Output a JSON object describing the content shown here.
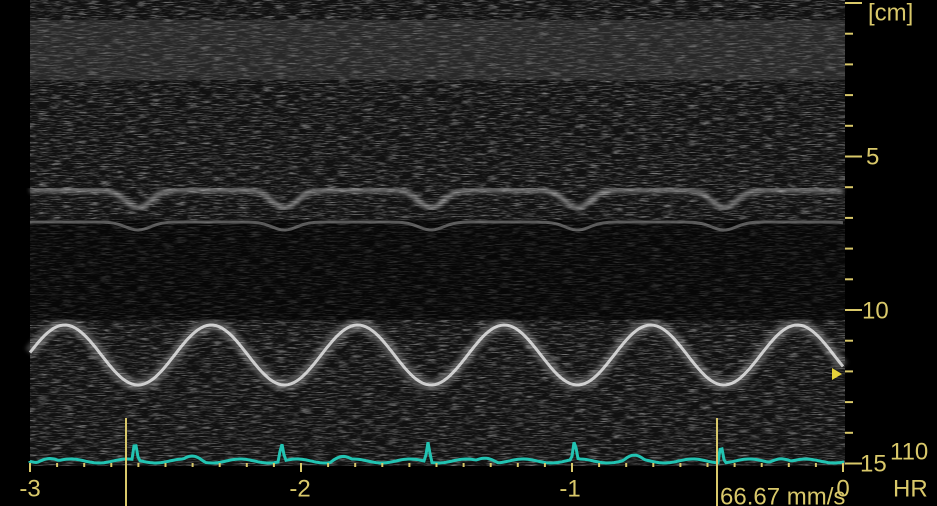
{
  "depth_axis": {
    "unit": "[cm]",
    "ticks": [
      5,
      10,
      15
    ]
  },
  "time_axis": {
    "ticks": [
      -3,
      -2,
      -1,
      0
    ]
  },
  "heart_rate": {
    "label": "HR",
    "value": 110
  },
  "sweep_speed": "66.67 mm/s"
}
